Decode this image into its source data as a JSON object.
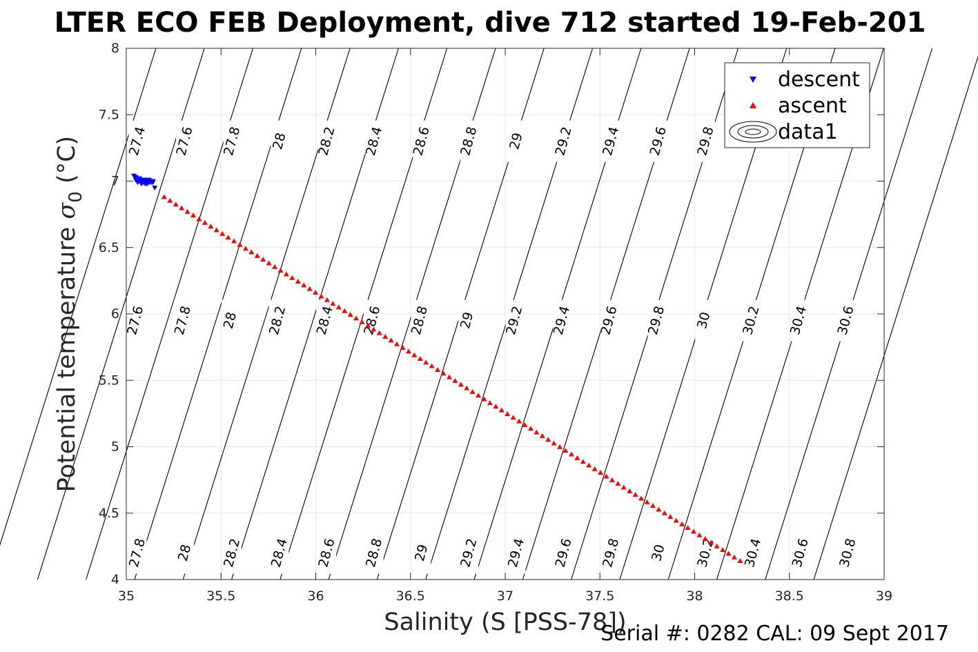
{
  "chart_data": {
    "type": "scatter",
    "title": "LTER ECO FEB Deployment, dive 712 started 19-Feb-201",
    "xlabel": "Salinity (S [PSS-78])",
    "ylabel": "Potential temperature σ0 (°C)",
    "ylabel_main": "Potential temperature ",
    "ylabel_sigma": "σ",
    "ylabel_sub": "0",
    "ylabel_unit": " (°C)",
    "xlim": [
      35,
      39
    ],
    "ylim": [
      4,
      8
    ],
    "xticks": [
      35,
      35.5,
      36,
      36.5,
      37,
      37.5,
      38,
      38.5,
      39
    ],
    "yticks": [
      4,
      4.5,
      5,
      5.5,
      6,
      6.5,
      7,
      7.5,
      8
    ],
    "xtick_labels": [
      "35",
      "35.5",
      "36",
      "36.5",
      "37",
      "37.5",
      "38",
      "38.5",
      "39"
    ],
    "ytick_labels": [
      "4",
      "4.5",
      "5",
      "5.5",
      "6",
      "6.5",
      "7",
      "7.5",
      "8"
    ],
    "grid": true,
    "legend": {
      "position": "top-right",
      "entries": [
        "descent",
        "ascent",
        "data1"
      ]
    },
    "series": [
      {
        "name": "descent",
        "marker": "triangle-down",
        "color": "#0000ff",
        "points": [
          [
            35.04,
            7.04
          ],
          [
            35.05,
            7.03
          ],
          [
            35.05,
            7.01
          ],
          [
            35.06,
            7.0
          ],
          [
            35.06,
            6.99
          ],
          [
            35.07,
            7.0
          ],
          [
            35.08,
            6.99
          ],
          [
            35.08,
            6.98
          ],
          [
            35.09,
            7.0
          ],
          [
            35.09,
            6.99
          ],
          [
            35.1,
            6.98
          ],
          [
            35.1,
            7.0
          ],
          [
            35.11,
            6.99
          ],
          [
            35.11,
            6.98
          ],
          [
            35.12,
            7.0
          ],
          [
            35.12,
            6.99
          ],
          [
            35.13,
            6.99
          ],
          [
            35.13,
            7.0
          ],
          [
            35.14,
            6.99
          ],
          [
            35.14,
            7.0
          ],
          [
            35.07,
            7.02
          ],
          [
            35.08,
            7.01
          ],
          [
            35.1,
            7.01
          ],
          [
            35.12,
            7.01
          ],
          [
            35.15,
            6.95
          ]
        ]
      },
      {
        "name": "ascent",
        "marker": "triangle-up",
        "color": "#ff0000",
        "start": [
          35.2,
          6.88
        ],
        "end": [
          38.24,
          4.14
        ],
        "count": 100
      }
    ],
    "contours": {
      "name": "data1",
      "line_color": "#000000",
      "lines": [
        {
          "sigma": 27.4,
          "label_positions": [
            [
              35.06,
              7.3
            ]
          ]
        },
        {
          "sigma": 27.6,
          "label_positions": [
            [
              35.31,
              7.3
            ],
            [
              35.05,
              5.95
            ]
          ]
        },
        {
          "sigma": 27.8,
          "label_positions": [
            [
              35.56,
              7.3
            ],
            [
              35.3,
              5.95
            ],
            [
              35.06,
              4.2
            ]
          ]
        },
        {
          "sigma": 28,
          "label_positions": [
            [
              35.81,
              7.3
            ],
            [
              35.55,
              5.95
            ],
            [
              35.31,
              4.2
            ]
          ]
        },
        {
          "sigma": 28.2,
          "label_positions": [
            [
              36.06,
              7.3
            ],
            [
              35.8,
              5.95
            ],
            [
              35.56,
              4.2
            ]
          ]
        },
        {
          "sigma": 28.4,
          "label_positions": [
            [
              36.31,
              7.3
            ],
            [
              36.05,
              5.95
            ],
            [
              35.81,
              4.2
            ]
          ]
        },
        {
          "sigma": 28.6,
          "label_positions": [
            [
              36.56,
              7.3
            ],
            [
              36.3,
              5.95
            ],
            [
              36.06,
              4.2
            ]
          ]
        },
        {
          "sigma": 28.8,
          "label_positions": [
            [
              36.81,
              7.3
            ],
            [
              36.55,
              5.95
            ],
            [
              36.31,
              4.2
            ]
          ]
        },
        {
          "sigma": 29,
          "label_positions": [
            [
              37.06,
              7.3
            ],
            [
              36.8,
              5.95
            ],
            [
              36.56,
              4.2
            ]
          ]
        },
        {
          "sigma": 29.2,
          "label_positions": [
            [
              37.31,
              7.3
            ],
            [
              37.05,
              5.95
            ],
            [
              36.81,
              4.2
            ]
          ]
        },
        {
          "sigma": 29.4,
          "label_positions": [
            [
              37.56,
              7.3
            ],
            [
              37.3,
              5.95
            ],
            [
              37.06,
              4.2
            ]
          ]
        },
        {
          "sigma": 29.6,
          "label_positions": [
            [
              37.81,
              7.3
            ],
            [
              37.55,
              5.95
            ],
            [
              37.31,
              4.2
            ]
          ]
        },
        {
          "sigma": 29.8,
          "label_positions": [
            [
              38.06,
              7.3
            ],
            [
              37.8,
              5.95
            ],
            [
              37.56,
              4.2
            ]
          ]
        },
        {
          "sigma": 30,
          "label_positions": [
            [
              38.05,
              5.95
            ],
            [
              37.81,
              4.2
            ]
          ]
        },
        {
          "sigma": 30.2,
          "label_positions": [
            [
              38.3,
              5.95
            ],
            [
              38.06,
              4.2
            ]
          ]
        },
        {
          "sigma": 30.4,
          "label_positions": [
            [
              38.55,
              5.95
            ],
            [
              38.31,
              4.2
            ]
          ]
        },
        {
          "sigma": 30.6,
          "label_positions": [
            [
              38.8,
              5.95
            ],
            [
              38.56,
              4.2
            ]
          ]
        },
        {
          "sigma": 30.8,
          "label_positions": [
            [
              38.81,
              4.2
            ]
          ]
        }
      ]
    }
  },
  "footer": {
    "serial_text": "Serial #: 0282  CAL: 09 Sept 2017"
  }
}
